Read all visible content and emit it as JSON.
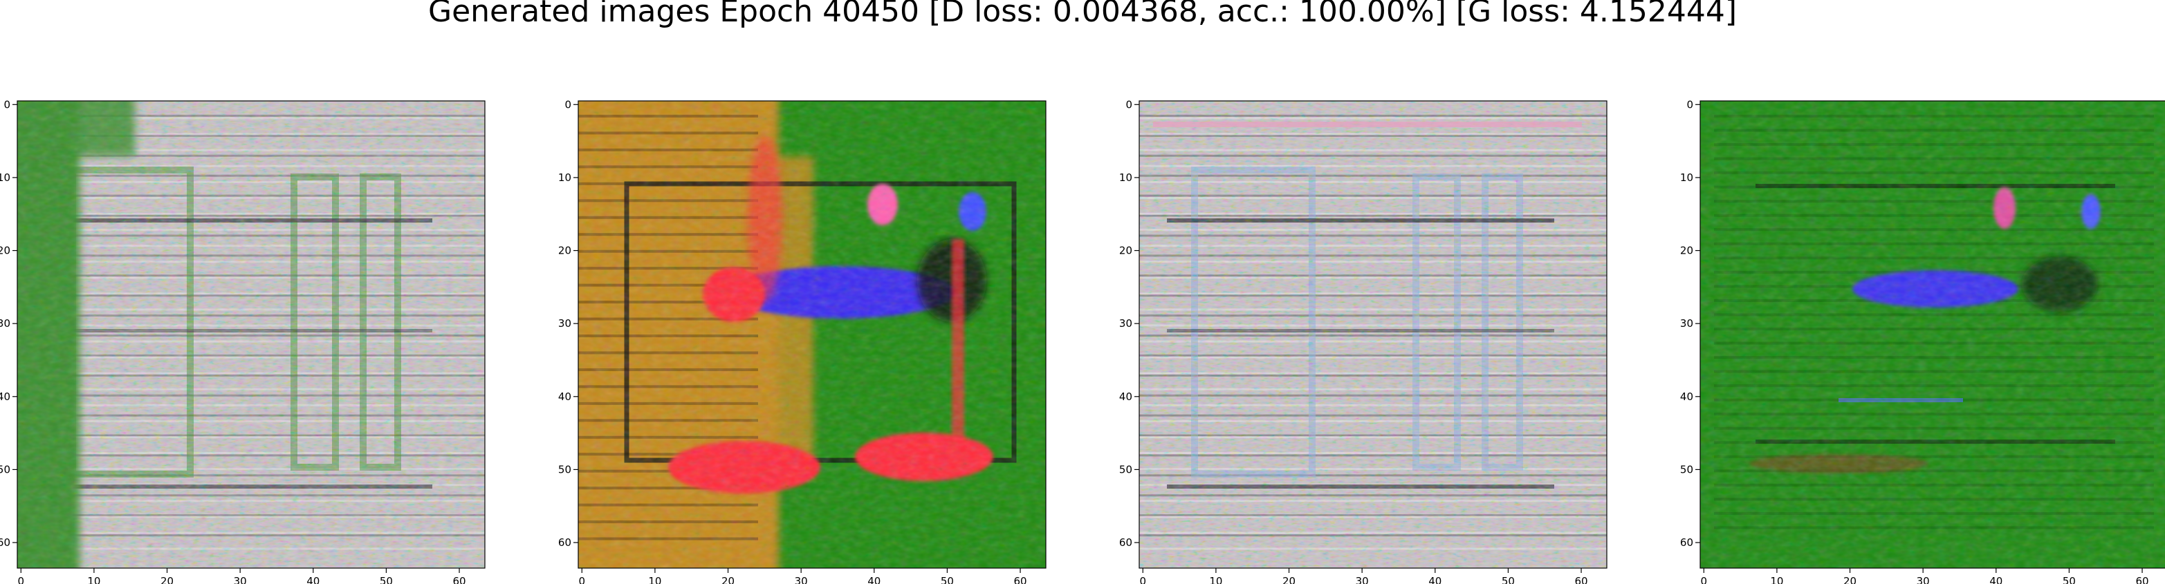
{
  "figure": {
    "title": "Generated images Epoch 40450 [D loss: 0.004368, acc.: 100.00%] [G loss: 4.152444]"
  },
  "chart_data": [
    {
      "type": "heatmap",
      "image_content": "generated sample: grey-white window/door facade texture, green strip on left edge",
      "colors": {
        "primary": "#c9c4c6",
        "secondary": "#3a8f2e",
        "accent": "#7fa6e6",
        "dark": "#202028"
      },
      "x_ticks": [
        0,
        10,
        20,
        30,
        40,
        50,
        60
      ],
      "y_ticks": [
        0,
        10,
        20,
        30,
        40,
        50,
        60
      ],
      "xlim": [
        -0.5,
        63.5
      ],
      "ylim": [
        63.5,
        -0.5
      ]
    },
    {
      "type": "heatmap",
      "image_content": "generated sample: green field with orange left band, red blobs and blue horizontal bar",
      "colors": {
        "primary": "#1f8a10",
        "secondary": "#c48a1a",
        "accent": "#3a2cf0",
        "highlight": "#ff2a3a",
        "dark": "#101010"
      },
      "x_ticks": [
        0,
        10,
        20,
        30,
        40,
        50,
        60
      ],
      "y_ticks": [
        0,
        10,
        20,
        30,
        40,
        50,
        60
      ],
      "xlim": [
        -0.5,
        63.5
      ],
      "ylim": [
        63.5,
        -0.5
      ]
    },
    {
      "type": "heatmap",
      "image_content": "generated sample: grey-white window/door facade texture with horizontal stripes",
      "colors": {
        "primary": "#c8c3c6",
        "secondary": "#8fb0e0",
        "accent": "#e8a0c0",
        "dark": "#202028"
      },
      "x_ticks": [
        0,
        10,
        20,
        30,
        40,
        50,
        60
      ],
      "y_ticks": [
        0,
        10,
        20,
        30,
        40,
        50,
        60
      ],
      "xlim": [
        -0.5,
        63.5
      ],
      "ylim": [
        63.5,
        -0.5
      ]
    },
    {
      "type": "heatmap",
      "image_content": "generated sample: mostly green field with blue bar, pink spot, dark smudge and faint stripes",
      "colors": {
        "primary": "#1d8a12",
        "secondary": "#146a0c",
        "accent": "#3a30f0",
        "highlight": "#e050a0",
        "dark": "#0c2a08"
      },
      "x_ticks": [
        0,
        10,
        20,
        30,
        40,
        50,
        60
      ],
      "y_ticks": [
        0,
        10,
        20,
        30,
        40,
        50,
        60
      ],
      "xlim": [
        -0.5,
        63.5
      ],
      "ylim": [
        63.5,
        -0.5
      ]
    }
  ]
}
